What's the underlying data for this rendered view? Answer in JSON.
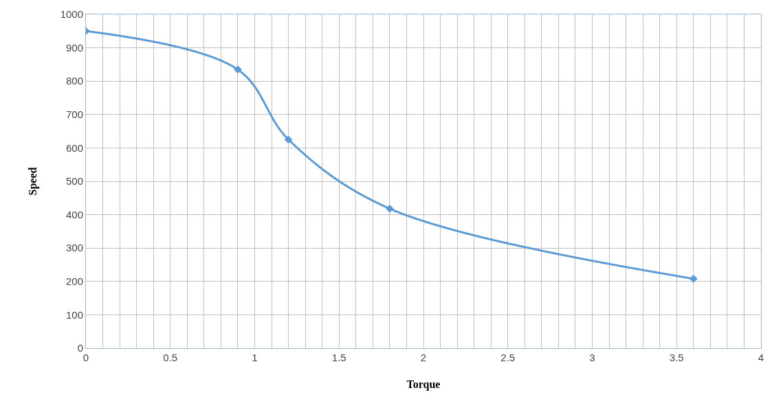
{
  "chart_data": {
    "type": "line",
    "xlabel": "Torque",
    "ylabel": "Speed",
    "x": [
      0,
      0.9,
      1.2,
      1.8,
      3.6
    ],
    "series": [
      {
        "color": "#5b9bd5",
        "values": [
          950,
          835,
          625,
          418,
          208
        ]
      }
    ],
    "marker": "diamond",
    "line_style": "solid",
    "grid": true,
    "xlim": [
      0,
      4
    ],
    "ylim": [
      0,
      1000
    ],
    "xticks": [
      0,
      {
        "value": 0.1,
        "label": null
      },
      {
        "value": 0.2,
        "label": null
      },
      {
        "value": 0.3,
        "label": null
      },
      {
        "value": 0.4,
        "label": null
      },
      0.5,
      {
        "value": 0.6,
        "label": null
      },
      {
        "value": 0.7,
        "label": null
      },
      {
        "value": 0.8,
        "label": null
      },
      {
        "value": 0.9,
        "label": null
      },
      1,
      {
        "value": 1.1,
        "label": null
      },
      {
        "value": 1.2,
        "label": null
      },
      {
        "value": 1.3,
        "label": null
      },
      {
        "value": 1.4,
        "label": null
      },
      1.5,
      {
        "value": 1.6,
        "label": null
      },
      {
        "value": 1.7,
        "label": null
      },
      {
        "value": 1.8,
        "label": null
      },
      {
        "value": 1.9,
        "label": null
      },
      2,
      {
        "value": 2.1,
        "label": null
      },
      {
        "value": 2.2,
        "label": null
      },
      {
        "value": 2.3,
        "label": null
      },
      {
        "value": 2.4,
        "label": null
      },
      2.5,
      {
        "value": 2.6,
        "label": null
      },
      {
        "value": 2.7,
        "label": null
      },
      {
        "value": 2.8,
        "label": null
      },
      {
        "value": 2.9,
        "label": null
      },
      3,
      {
        "value": 3.1,
        "label": null
      },
      {
        "value": 3.2,
        "label": null
      },
      {
        "value": 3.3,
        "label": null
      },
      {
        "value": 3.4,
        "label": null
      },
      3.5,
      {
        "value": 3.6,
        "label": null
      },
      {
        "value": 3.7,
        "label": null
      },
      {
        "value": 3.8,
        "label": null
      },
      {
        "value": 3.9,
        "label": null
      },
      4
    ],
    "yticks": [
      0,
      100,
      200,
      300,
      400,
      500,
      600,
      700,
      800,
      900,
      1000
    ]
  }
}
